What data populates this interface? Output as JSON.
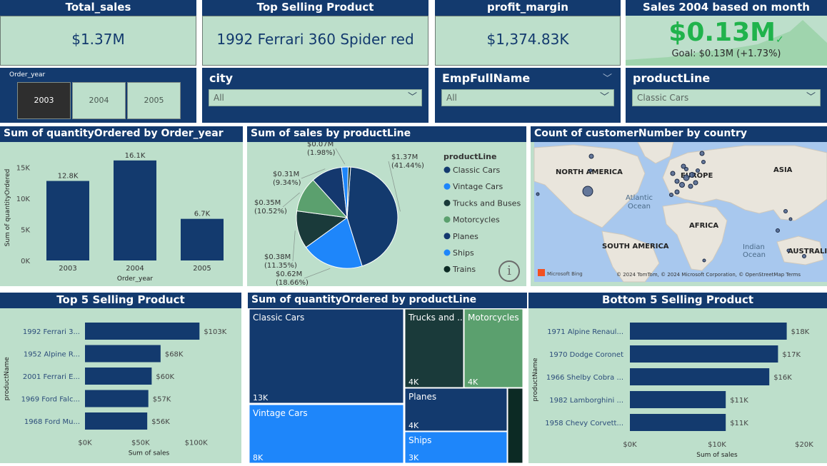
{
  "kpis": {
    "total_sales": {
      "title": "Total_sales",
      "value": "$1.37M"
    },
    "top_product": {
      "title": "Top Selling Product",
      "value": "1992 Ferrari 360 Spider red"
    },
    "profit_margin": {
      "title": "profit_margin",
      "value": "$1,374.83K"
    },
    "sales_2004": {
      "title": "Sales 2004 based on month",
      "value": "$0.13M",
      "goal": "Goal: $0.13M (+1.73%)"
    }
  },
  "slicers": {
    "order_year": {
      "title": "Order_year",
      "options": [
        "2003",
        "2004",
        "2005"
      ]
    },
    "city": {
      "title": "city",
      "value": "All"
    },
    "emp": {
      "title": "EmpFullName",
      "value": "All"
    },
    "product_line": {
      "title": "productLine",
      "value": "Classic Cars"
    }
  },
  "bar_year": {
    "title": "Sum of quantityOrdered by Order_year",
    "chart_data": {
      "type": "bar",
      "categories": [
        "2003",
        "2004",
        "2005"
      ],
      "values": [
        12800,
        16100,
        6700
      ],
      "data_labels": [
        "12.8K",
        "16.1K",
        "6.7K"
      ],
      "ylim": [
        0,
        17000
      ],
      "yticks": [
        {
          "v": 0,
          "label": "0K"
        },
        {
          "v": 5000,
          "label": "5K"
        },
        {
          "v": 10000,
          "label": "10K"
        },
        {
          "v": 15000,
          "label": "15K"
        }
      ],
      "xlabel": "Order_year",
      "ylabel": "Sum of quantityOrdered",
      "color": "#133a6e"
    }
  },
  "pie": {
    "title": "Sum of sales by productLine",
    "legend_title": "productLine",
    "chart_data": {
      "type": "pie",
      "slices": [
        {
          "name": "Classic Cars",
          "pct": 41.44,
          "value": "$1.37M",
          "pct_label": "(41.44%)",
          "color": "#133a6e"
        },
        {
          "name": "Vintage Cars",
          "pct": 18.66,
          "value": "$0.62M",
          "pct_label": "(18.66%)",
          "color": "#1e86fa"
        },
        {
          "name": "Trucks and Buses",
          "pct": 11.35,
          "value": "$0.38M",
          "pct_label": "(11.35%)",
          "color": "#1a3a3a"
        },
        {
          "name": "Motorcycles",
          "pct": 10.52,
          "value": "$0.35M",
          "pct_label": "(10.52%)",
          "color": "#5ba06e"
        },
        {
          "name": "Planes",
          "pct": 9.34,
          "value": "$0.31M",
          "pct_label": "(9.34%)",
          "color": "#14386e"
        },
        {
          "name": "Ships",
          "pct": 1.98,
          "value": "$0.07M",
          "pct_label": "(1.98%)",
          "color": "#1e86fa"
        },
        {
          "name": "Trains",
          "pct": 0.71,
          "value": "",
          "pct_label": "",
          "color": "#0c2a24"
        }
      ]
    }
  },
  "map": {
    "title": "Count of customerNumber by country",
    "labels": [
      "NORTH AMERICA",
      "EUROPE",
      "ASIA",
      "Atlantic",
      "Ocean",
      "AFRICA",
      "SOUTH AMERICA",
      "Indian",
      "Ocean",
      "AUSTRALI"
    ],
    "bing": "Microsoft Bing",
    "copyright": "© 2024 TomTom, © 2024 Microsoft Corporation, © OpenStreetMap  Terms"
  },
  "top5": {
    "title": "Top 5 Selling Product",
    "chart_data": {
      "type": "bar",
      "categories": [
        "1992 Ferrari 3...",
        "1952 Alpine R...",
        "2001 Ferrari E...",
        "1969 Ford Falc...",
        "1968 Ford Mu..."
      ],
      "values": [
        103000,
        68000,
        60000,
        57000,
        56000
      ],
      "data_labels": [
        "$103K",
        "$68K",
        "$60K",
        "$57K",
        "$56K"
      ],
      "xlim": [
        0,
        115000
      ],
      "xticks": [
        {
          "v": 0,
          "label": "$0K"
        },
        {
          "v": 50000,
          "label": "$50K"
        },
        {
          "v": 100000,
          "label": "$100K"
        }
      ],
      "xlabel": "Sum of sales",
      "ylabel": "productName",
      "color": "#133a6e"
    }
  },
  "treemap": {
    "title": "Sum of quantityOrdered by productLine",
    "chart_data": {
      "type": "treemap",
      "items": [
        {
          "name": "Classic Cars",
          "value": "13K",
          "color": "#133a6e"
        },
        {
          "name": "Vintage Cars",
          "value": "8K",
          "color": "#1e86fa"
        },
        {
          "name": "Trucks and ...",
          "value": "4K",
          "color": "#1a3a3a"
        },
        {
          "name": "Motorcycles",
          "value": "4K",
          "color": "#5ba06e"
        },
        {
          "name": "Planes",
          "value": "4K",
          "color": "#133a6e"
        },
        {
          "name": "Ships",
          "value": "3K",
          "color": "#1e86fa"
        },
        {
          "name": "",
          "value": "",
          "color": "#0c2a24"
        }
      ]
    }
  },
  "bottom5": {
    "title": "Bottom 5 Selling Product",
    "chart_data": {
      "type": "bar",
      "categories": [
        "1971 Alpine Renaul...",
        "1970 Dodge Coronet",
        "1966 Shelby Cobra ...",
        "1982 Lamborghini ...",
        "1958 Chevy Corvett..."
      ],
      "values": [
        18000,
        17000,
        16000,
        11000,
        11000
      ],
      "data_labels": [
        "$18K",
        "$17K",
        "$16K",
        "$11K",
        "$11K"
      ],
      "xlim": [
        0,
        20000
      ],
      "xticks": [
        {
          "v": 0,
          "label": "$0K"
        },
        {
          "v": 10000,
          "label": "$10K"
        },
        {
          "v": 20000,
          "label": "$20K"
        }
      ],
      "xlabel": "Sum of sales",
      "ylabel": "productName",
      "color": "#133a6e"
    }
  }
}
